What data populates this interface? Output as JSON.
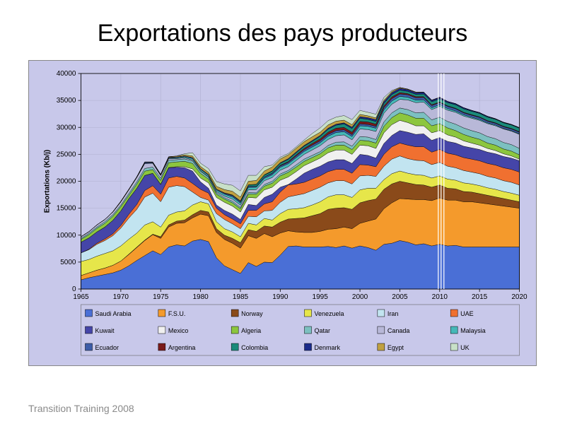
{
  "title": "Exportations des pays producteurs",
  "footer": "Transition Training 2008",
  "chart": {
    "type": "area-stacked",
    "ylabel": "Exportations (Kb/j)",
    "ylabel_fontsize": 10,
    "axis_fontsize": 10,
    "legend_fontsize": 9,
    "xlim": [
      1965,
      2020
    ],
    "xtick_step": 5,
    "ylim": [
      0,
      40000
    ],
    "ytick_step": 5000,
    "grid_color": "#b0b0d0",
    "plot_bg": "#c8c8ea",
    "chart_border_color": "#000000",
    "highlight_year": 2010,
    "years": [
      1965,
      1966,
      1967,
      1968,
      1969,
      1970,
      1971,
      1972,
      1973,
      1974,
      1975,
      1976,
      1977,
      1978,
      1979,
      1980,
      1981,
      1982,
      1983,
      1984,
      1985,
      1986,
      1987,
      1988,
      1989,
      1990,
      1991,
      1992,
      1993,
      1994,
      1995,
      1996,
      1997,
      1998,
      1999,
      2000,
      2001,
      2002,
      2003,
      2004,
      2005,
      2006,
      2007,
      2008,
      2009,
      2010,
      2011,
      2012,
      2013,
      2014,
      2015,
      2016,
      2017,
      2018,
      2019,
      2020
    ],
    "series": [
      {
        "name": "Saudi Arabia",
        "color": "#4a6fd6",
        "values": [
          1700,
          2100,
          2400,
          2700,
          3000,
          3500,
          4300,
          5300,
          6200,
          7100,
          6400,
          7800,
          8200,
          8000,
          8900,
          9200,
          8800,
          5800,
          4300,
          3600,
          2900,
          4900,
          4200,
          5000,
          4900,
          6300,
          7900,
          8000,
          7800,
          7800,
          7800,
          7900,
          7700,
          8000,
          7600,
          8000,
          7700,
          7200,
          8300,
          8500,
          9000,
          8700,
          8200,
          8400,
          8000,
          8300,
          8000,
          8100,
          7800,
          7800,
          7800,
          7800,
          7800,
          7800,
          7800,
          7800
        ]
      },
      {
        "name": "F.S.U.",
        "color": "#f49a2c",
        "values": [
          800,
          900,
          1100,
          1200,
          1400,
          1700,
          2100,
          2400,
          2800,
          3000,
          3000,
          3700,
          4000,
          4300,
          4300,
          4700,
          4800,
          4700,
          4900,
          4900,
          4700,
          5000,
          5200,
          5300,
          4800,
          4100,
          2900,
          2600,
          2700,
          2700,
          2900,
          3200,
          3500,
          3500,
          3600,
          4200,
          4900,
          5800,
          6600,
          7500,
          7800,
          8000,
          8400,
          8200,
          8400,
          8600,
          8500,
          8400,
          8400,
          8400,
          8200,
          8000,
          7800,
          7600,
          7400,
          7200
        ]
      },
      {
        "name": "Norway",
        "color": "#8a4a1a",
        "values": [
          0,
          0,
          0,
          0,
          0,
          0,
          50,
          80,
          80,
          80,
          300,
          400,
          400,
          500,
          600,
          700,
          700,
          700,
          800,
          900,
          1000,
          1100,
          1300,
          1400,
          1800,
          2000,
          2200,
          2500,
          2700,
          3100,
          3300,
          3700,
          3800,
          3600,
          3600,
          3800,
          3800,
          3700,
          3600,
          3500,
          3200,
          3000,
          2800,
          2700,
          2500,
          2400,
          2200,
          2100,
          1900,
          1800,
          1700,
          1600,
          1500,
          1400,
          1300,
          1200
        ]
      },
      {
        "name": "Venezuela",
        "color": "#e6e64a",
        "values": [
          2600,
          2500,
          2600,
          2700,
          2700,
          2800,
          2800,
          2600,
          2800,
          2300,
          1800,
          1800,
          1700,
          1700,
          1800,
          1600,
          1500,
          1300,
          1200,
          1200,
          1100,
          1200,
          1200,
          1400,
          1300,
          1600,
          1800,
          1800,
          1900,
          2000,
          2200,
          2300,
          2500,
          2400,
          2200,
          2400,
          2300,
          2000,
          1800,
          1900,
          1900,
          1800,
          1800,
          1800,
          1700,
          1700,
          1700,
          1600,
          1600,
          1500,
          1500,
          1400,
          1400,
          1300,
          1300,
          1200
        ]
      },
      {
        "name": "Iran",
        "color": "#c2e4f0",
        "values": [
          1600,
          1800,
          2200,
          2400,
          2800,
          3300,
          3900,
          4400,
          5200,
          5300,
          4700,
          5200,
          4900,
          4500,
          2400,
          800,
          700,
          1500,
          1700,
          1500,
          1500,
          1300,
          1500,
          1400,
          1800,
          2100,
          2300,
          2500,
          2600,
          2700,
          2700,
          2600,
          2600,
          2600,
          2500,
          2600,
          2400,
          2200,
          2500,
          2700,
          2800,
          2700,
          2700,
          2700,
          2500,
          2500,
          2400,
          2300,
          2300,
          2200,
          2200,
          2100,
          2100,
          2000,
          2000,
          1900
        ]
      },
      {
        "name": "UAE",
        "color": "#f07030",
        "values": [
          0,
          100,
          200,
          300,
          350,
          500,
          700,
          900,
          1200,
          1400,
          1400,
          1700,
          1700,
          1600,
          1600,
          1500,
          1300,
          1000,
          900,
          900,
          900,
          1100,
          1200,
          1300,
          1600,
          1900,
          2200,
          2100,
          2100,
          2100,
          2100,
          2100,
          2100,
          2100,
          2000,
          2100,
          1900,
          1800,
          2200,
          2300,
          2400,
          2500,
          2500,
          2600,
          2300,
          2400,
          2400,
          2400,
          2400,
          2400,
          2400,
          2400,
          2400,
          2400,
          2400,
          2400
        ]
      },
      {
        "name": "Kuwait",
        "color": "#4545a8",
        "values": [
          2000,
          2100,
          2100,
          2200,
          2500,
          2700,
          2900,
          3000,
          2800,
          2300,
          1800,
          1900,
          1700,
          1900,
          2300,
          1400,
          900,
          600,
          800,
          900,
          800,
          1100,
          900,
          1200,
          1400,
          900,
          100,
          900,
          1700,
          1800,
          1800,
          1800,
          1800,
          1800,
          1800,
          1900,
          1800,
          1600,
          2000,
          2100,
          2300,
          2400,
          2300,
          2400,
          2200,
          2200,
          2200,
          2200,
          2100,
          2100,
          2100,
          2100,
          2100,
          2100,
          2100,
          2100
        ]
      },
      {
        "name": "Mexico",
        "color": "#f0f0f0",
        "values": [
          0,
          0,
          0,
          0,
          0,
          0,
          0,
          0,
          0,
          0,
          50,
          50,
          100,
          200,
          400,
          700,
          1000,
          1400,
          1500,
          1500,
          1400,
          1300,
          1400,
          1400,
          1300,
          1300,
          1400,
          1400,
          1400,
          1400,
          1500,
          1700,
          1800,
          1800,
          1700,
          1700,
          1800,
          1800,
          2000,
          2000,
          1900,
          1800,
          1600,
          1500,
          1400,
          1300,
          1200,
          1100,
          1000,
          900,
          800,
          700,
          600,
          500,
          400,
          300
        ]
      },
      {
        "name": "Algeria",
        "color": "#8cc63e",
        "values": [
          500,
          600,
          650,
          700,
          750,
          800,
          600,
          800,
          800,
          700,
          700,
          900,
          900,
          1000,
          1000,
          850,
          700,
          600,
          600,
          600,
          600,
          600,
          700,
          700,
          750,
          800,
          850,
          850,
          800,
          800,
          800,
          900,
          900,
          900,
          900,
          900,
          900,
          1000,
          1200,
          1300,
          1400,
          1400,
          1400,
          1400,
          1300,
          1300,
          1300,
          1200,
          1200,
          1100,
          1100,
          1000,
          1000,
          900,
          900,
          800
        ]
      },
      {
        "name": "Qatar",
        "color": "#7cc0c0",
        "values": [
          200,
          250,
          250,
          300,
          300,
          300,
          350,
          400,
          500,
          450,
          400,
          450,
          400,
          450,
          450,
          400,
          350,
          300,
          250,
          300,
          250,
          300,
          250,
          300,
          350,
          350,
          350,
          400,
          400,
          400,
          400,
          450,
          550,
          600,
          600,
          700,
          700,
          650,
          800,
          900,
          900,
          1000,
          1000,
          1100,
          1100,
          1200,
          1200,
          1200,
          1200,
          1200,
          1200,
          1200,
          1200,
          1200,
          1200,
          1200
        ]
      },
      {
        "name": "Canada",
        "color": "#b8b8d8",
        "values": [
          300,
          300,
          400,
          400,
          500,
          600,
          700,
          800,
          900,
          700,
          500,
          300,
          200,
          200,
          200,
          100,
          100,
          200,
          300,
          400,
          400,
          500,
          600,
          700,
          700,
          700,
          700,
          800,
          900,
          1000,
          1100,
          1100,
          1200,
          1300,
          1200,
          1400,
          1400,
          1500,
          1600,
          1600,
          1600,
          1800,
          1900,
          1900,
          1900,
          2000,
          2100,
          2200,
          2200,
          2300,
          2300,
          2400,
          2400,
          2500,
          2500,
          2600
        ]
      },
      {
        "name": "Malaysia",
        "color": "#46b8b8",
        "values": [
          0,
          0,
          0,
          0,
          0,
          0,
          0,
          50,
          50,
          50,
          50,
          100,
          150,
          200,
          250,
          250,
          250,
          300,
          350,
          400,
          400,
          450,
          450,
          450,
          500,
          550,
          550,
          550,
          550,
          550,
          550,
          600,
          600,
          600,
          600,
          600,
          600,
          600,
          650,
          600,
          550,
          500,
          450,
          400,
          350,
          300,
          300,
          250,
          250,
          200,
          200,
          150,
          150,
          100,
          100,
          100
        ]
      },
      {
        "name": "Ecuador",
        "color": "#3d5da8",
        "values": [
          0,
          0,
          0,
          0,
          0,
          0,
          0,
          50,
          200,
          150,
          150,
          150,
          150,
          150,
          200,
          150,
          150,
          150,
          200,
          250,
          250,
          250,
          150,
          250,
          250,
          250,
          250,
          300,
          300,
          350,
          350,
          350,
          350,
          350,
          350,
          350,
          350,
          350,
          400,
          450,
          450,
          450,
          450,
          450,
          400,
          400,
          400,
          400,
          350,
          350,
          350,
          300,
          300,
          300,
          300,
          300
        ]
      },
      {
        "name": "Argentina",
        "color": "#7a1a1a",
        "values": [
          0,
          0,
          0,
          0,
          0,
          0,
          0,
          0,
          0,
          0,
          0,
          0,
          0,
          0,
          0,
          0,
          0,
          0,
          0,
          0,
          0,
          0,
          0,
          0,
          50,
          100,
          150,
          200,
          250,
          300,
          350,
          400,
          450,
          450,
          450,
          450,
          450,
          400,
          350,
          300,
          250,
          200,
          200,
          150,
          150,
          100,
          100,
          100,
          100,
          100,
          100,
          100,
          100,
          100,
          100,
          100
        ]
      },
      {
        "name": "Colombia",
        "color": "#1a8a7a",
        "values": [
          0,
          0,
          0,
          0,
          0,
          0,
          0,
          0,
          0,
          0,
          0,
          0,
          0,
          0,
          0,
          0,
          0,
          0,
          50,
          100,
          150,
          250,
          350,
          350,
          350,
          400,
          400,
          400,
          400,
          400,
          500,
          550,
          550,
          650,
          700,
          600,
          500,
          500,
          450,
          450,
          450,
          450,
          450,
          500,
          550,
          600,
          600,
          650,
          650,
          650,
          650,
          650,
          650,
          650,
          650,
          650
        ]
      },
      {
        "name": "Denmark",
        "color": "#1a2a8a",
        "values": [
          0,
          0,
          0,
          0,
          0,
          0,
          0,
          0,
          0,
          0,
          0,
          0,
          0,
          0,
          0,
          0,
          0,
          0,
          0,
          0,
          0,
          0,
          50,
          50,
          100,
          100,
          150,
          150,
          150,
          150,
          150,
          200,
          200,
          200,
          250,
          300,
          300,
          350,
          350,
          350,
          350,
          300,
          300,
          300,
          250,
          250,
          200,
          200,
          200,
          150,
          150,
          150,
          100,
          100,
          100,
          100
        ]
      },
      {
        "name": "Egypt",
        "color": "#c0a040",
        "values": [
          0,
          0,
          0,
          0,
          50,
          100,
          100,
          50,
          50,
          50,
          50,
          100,
          150,
          200,
          300,
          400,
          400,
          500,
          600,
          700,
          700,
          650,
          700,
          700,
          700,
          700,
          700,
          700,
          700,
          700,
          600,
          600,
          550,
          500,
          450,
          400,
          350,
          300,
          250,
          200,
          150,
          100,
          100,
          50,
          50,
          50,
          0,
          0,
          0,
          0,
          0,
          0,
          0,
          0,
          0,
          0
        ]
      },
      {
        "name": "UK",
        "color": "#c8e0c8",
        "values": [
          0,
          0,
          0,
          0,
          0,
          0,
          0,
          0,
          0,
          0,
          0,
          0,
          50,
          200,
          600,
          600,
          700,
          900,
          1050,
          1100,
          1150,
          1100,
          950,
          800,
          350,
          300,
          250,
          250,
          300,
          600,
          800,
          800,
          750,
          850,
          950,
          750,
          650,
          700,
          500,
          200,
          0,
          0,
          0,
          0,
          0,
          0,
          0,
          0,
          0,
          0,
          0,
          0,
          0,
          0,
          0,
          0
        ]
      }
    ]
  }
}
